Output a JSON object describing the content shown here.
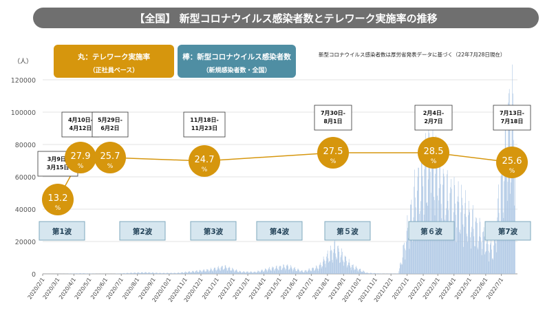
{
  "title": "【全国】 新型コロナウイルス感染者数とテレワーク実施率の推移",
  "legend": {
    "maru": {
      "line1": "丸：テレワーク実施率",
      "line2": "（正社員ベース）",
      "color": "#d6960d"
    },
    "bou": {
      "line1": "棒：新型コロナウイルス感染者数",
      "line2": "（新規感染者数・全国）",
      "color": "#4f8ea3"
    }
  },
  "source_note": "新型コロナウイルス感染者数は厚労省発表データに基づく（22年7月28日現在）",
  "chart_data": [
    {
      "type": "bar",
      "ylabel": "（人）",
      "ylim": [
        0,
        120000
      ],
      "yticks": [
        0,
        20000,
        40000,
        60000,
        80000,
        100000,
        120000
      ],
      "xlabels": [
        "2020/2/1",
        "2020/3/1",
        "2020/4/1",
        "2020/5/1",
        "2020/6/1",
        "2020/7/1",
        "2020/8/1",
        "2020/9/1",
        "2020/10/1",
        "2020/11/1",
        "2020/12/1",
        "2021/1/1",
        "2021/2/1",
        "2021/3/1",
        "2021/4/1",
        "2021/5/1",
        "2021/6/1",
        "2021/7/1",
        "2021/8/1",
        "2021/9/1",
        "2021/10/1",
        "2021/11/1",
        "2021/12/1",
        "2022/1/1",
        "2022/2/1",
        "2022/3/1",
        "2022/4/1",
        "2022/5/1",
        "2022/6/1",
        "2022/7/1"
      ],
      "series": [
        {
          "name": "新型コロナウイルス感染者数",
          "color": "#a9c4e3",
          "approx_daily_by_month": [
            {
              "month": "2020/2",
              "value": 20
            },
            {
              "month": "2020/3",
              "value": 80
            },
            {
              "month": "2020/4",
              "value": 400
            },
            {
              "month": "2020/5",
              "value": 80
            },
            {
              "month": "2020/6",
              "value": 60
            },
            {
              "month": "2020/7",
              "value": 600
            },
            {
              "month": "2020/8",
              "value": 1000
            },
            {
              "month": "2020/9",
              "value": 550
            },
            {
              "month": "2020/10",
              "value": 600
            },
            {
              "month": "2020/11",
              "value": 1700
            },
            {
              "month": "2020/12",
              "value": 2800
            },
            {
              "month": "2021/1",
              "value": 5000
            },
            {
              "month": "2021/2",
              "value": 1500
            },
            {
              "month": "2021/3",
              "value": 1300
            },
            {
              "month": "2021/4",
              "value": 4000
            },
            {
              "month": "2021/5",
              "value": 5500
            },
            {
              "month": "2021/6",
              "value": 1700
            },
            {
              "month": "2021/7",
              "value": 5000
            },
            {
              "month": "2021/8",
              "value": 19000
            },
            {
              "month": "2021/9",
              "value": 6000
            },
            {
              "month": "2021/10",
              "value": 700
            },
            {
              "month": "2021/11",
              "value": 150
            },
            {
              "month": "2021/12",
              "value": 250
            },
            {
              "month": "2022/1",
              "value": 55000
            },
            {
              "month": "2022/2",
              "value": 88000
            },
            {
              "month": "2022/3",
              "value": 58000
            },
            {
              "month": "2022/4",
              "value": 48000
            },
            {
              "month": "2022/5",
              "value": 33000
            },
            {
              "month": "2022/6",
              "value": 17000
            },
            {
              "month": "2022/7",
              "value": 110000
            }
          ]
        }
      ]
    },
    {
      "type": "scatter",
      "name": "テレワーク実施率",
      "color": "#d6960d",
      "points": [
        {
          "date": "2020/3/9",
          "period": "3月9日-\n3月15日",
          "value": "13.2",
          "unit": "%"
        },
        {
          "date": "2020/4/10",
          "period": "4月10日-\n4月12日",
          "value": "27.9",
          "unit": "%"
        },
        {
          "date": "2020/5/29",
          "period": "5月29日-\n6月2日",
          "value": "25.7",
          "unit": "%"
        },
        {
          "date": "2020/11/18",
          "period": "11月18日-\n11月23日",
          "value": "24.7",
          "unit": "%"
        },
        {
          "date": "2021/7/30",
          "period": "7月30日-\n8月1日",
          "value": "27.5",
          "unit": "%"
        },
        {
          "date": "2022/2/4",
          "period": "2月4日-\n2月7日",
          "value": "28.5",
          "unit": "%"
        },
        {
          "date": "2022/7/13",
          "period": "7月13日-\n7月18日",
          "value": "25.6",
          "unit": "%"
        }
      ]
    }
  ],
  "waves": [
    "第1波",
    "第2波",
    "第3波",
    "第4波",
    "第５波",
    "第６波",
    "第7波"
  ]
}
